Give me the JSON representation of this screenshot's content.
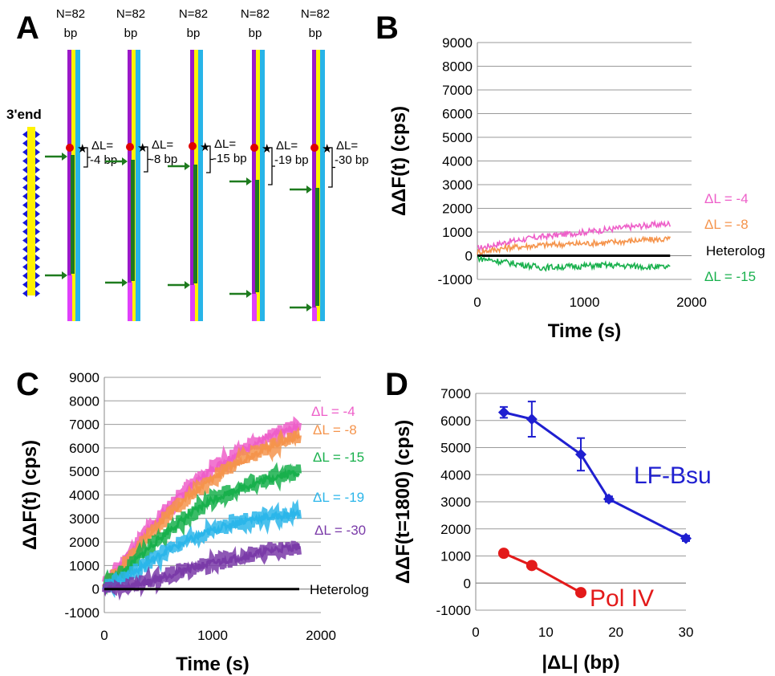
{
  "panels": {
    "a": "A",
    "b": "B",
    "c": "C",
    "d": "D"
  },
  "panel_a": {
    "three_end": "3'end",
    "n_line": "N=82",
    "bp_line": "bp",
    "dl_prefix": "ΔL=",
    "constructs": [
      {
        "dl": "-4 bp"
      },
      {
        "dl": "-8 bp"
      },
      {
        "dl": "-15 bp"
      },
      {
        "dl": "-19 bp"
      },
      {
        "dl": "-30 bp"
      }
    ],
    "colors": {
      "purple": "#9b19c9",
      "yellow": "#fff200",
      "cyan": "#27b4e8",
      "green": "#1e7b1e",
      "magenta": "#e040fb",
      "blue": "#1a1ad6",
      "red": "#e00000"
    }
  },
  "chart_data": [
    {
      "panel": "B",
      "type": "line",
      "xlabel": "Time (s)",
      "ylabel": "ΔΔF(t) (cps)",
      "xlim": [
        0,
        2000
      ],
      "ylim": [
        -1000,
        9000
      ],
      "xticks": [
        0,
        1000,
        2000
      ],
      "yticks": [
        -1000,
        0,
        1000,
        2000,
        3000,
        4000,
        5000,
        6000,
        7000,
        8000,
        9000
      ],
      "grid": true,
      "legend_position": "right",
      "series": [
        {
          "name": "ΔL = -4",
          "color": "#ee5fc9",
          "x": [
            0,
            300,
            600,
            900,
            1200,
            1500,
            1800
          ],
          "y": [
            300,
            600,
            800,
            950,
            1100,
            1250,
            1350
          ]
        },
        {
          "name": "ΔL = -8",
          "color": "#f5944c",
          "x": [
            0,
            300,
            600,
            900,
            1200,
            1500,
            1800
          ],
          "y": [
            150,
            350,
            450,
            500,
            550,
            650,
            700
          ]
        },
        {
          "name": "Heterolog",
          "color": "#000000",
          "x": [
            0,
            1800
          ],
          "y": [
            0,
            0
          ]
        },
        {
          "name": "ΔL = -15",
          "color": "#18b04c",
          "x": [
            0,
            300,
            600,
            900,
            1200,
            1500,
            1800
          ],
          "y": [
            -100,
            -300,
            -500,
            -450,
            -400,
            -450,
            -500
          ]
        }
      ]
    },
    {
      "panel": "C",
      "type": "line",
      "xlabel": "Time (s)",
      "ylabel": "ΔΔF(t) (cps)",
      "xlim": [
        0,
        2000
      ],
      "ylim": [
        -1000,
        9000
      ],
      "xticks": [
        0,
        1000,
        2000
      ],
      "yticks": [
        -1000,
        0,
        1000,
        2000,
        3000,
        4000,
        5000,
        6000,
        7000,
        8000,
        9000
      ],
      "grid": true,
      "legend_position": "right",
      "series": [
        {
          "name": "ΔL = -4",
          "color": "#ee5fc9",
          "x": [
            0,
            200,
            400,
            600,
            800,
            1000,
            1200,
            1400,
            1600,
            1800
          ],
          "y": [
            200,
            1300,
            2500,
            3500,
            4400,
            5100,
            5700,
            6200,
            6600,
            6900
          ]
        },
        {
          "name": "ΔL = -8",
          "color": "#f5944c",
          "x": [
            0,
            200,
            400,
            600,
            800,
            1000,
            1200,
            1400,
            1600,
            1800
          ],
          "y": [
            150,
            1100,
            2200,
            3200,
            4000,
            4700,
            5300,
            5800,
            6200,
            6500
          ]
        },
        {
          "name": "ΔL = -15",
          "color": "#18b04c",
          "x": [
            0,
            200,
            400,
            600,
            800,
            1000,
            1200,
            1400,
            1600,
            1800
          ],
          "y": [
            100,
            800,
            1700,
            2500,
            3200,
            3800,
            4200,
            4500,
            4800,
            5000
          ]
        },
        {
          "name": "ΔL = -19",
          "color": "#2bb6ea",
          "x": [
            0,
            200,
            400,
            600,
            800,
            1000,
            1200,
            1400,
            1600,
            1800
          ],
          "y": [
            50,
            500,
            1100,
            1700,
            2100,
            2500,
            2800,
            3000,
            3100,
            3200
          ]
        },
        {
          "name": "ΔL = -30",
          "color": "#7a3aa8",
          "x": [
            0,
            200,
            400,
            600,
            800,
            1000,
            1200,
            1400,
            1600,
            1800
          ],
          "y": [
            0,
            100,
            300,
            600,
            900,
            1100,
            1300,
            1500,
            1700,
            1800
          ]
        },
        {
          "name": "Heterolog",
          "color": "#000000",
          "x": [
            0,
            1800
          ],
          "y": [
            0,
            0
          ]
        }
      ]
    },
    {
      "panel": "D",
      "type": "line",
      "xlabel": "|ΔL| (bp)",
      "ylabel": "ΔΔF(t=1800) (cps)",
      "xlim": [
        0,
        30
      ],
      "ylim": [
        -1000,
        7000
      ],
      "xticks": [
        0,
        10,
        20,
        30
      ],
      "yticks": [
        -1000,
        0,
        1000,
        2000,
        3000,
        4000,
        5000,
        6000,
        7000
      ],
      "grid": true,
      "series": [
        {
          "name": "LF-Bsu",
          "color": "#1f1fd0",
          "marker": "diamond",
          "x": [
            4,
            8,
            15,
            19,
            30
          ],
          "y": [
            6300,
            6050,
            4750,
            3100,
            1650
          ],
          "err": [
            200,
            650,
            600,
            100,
            100
          ]
        },
        {
          "name": "Pol IV",
          "color": "#e31a1a",
          "marker": "circle",
          "x": [
            4,
            8,
            15
          ],
          "y": [
            1100,
            650,
            -350
          ],
          "err": [
            0,
            0,
            0
          ]
        }
      ]
    }
  ]
}
